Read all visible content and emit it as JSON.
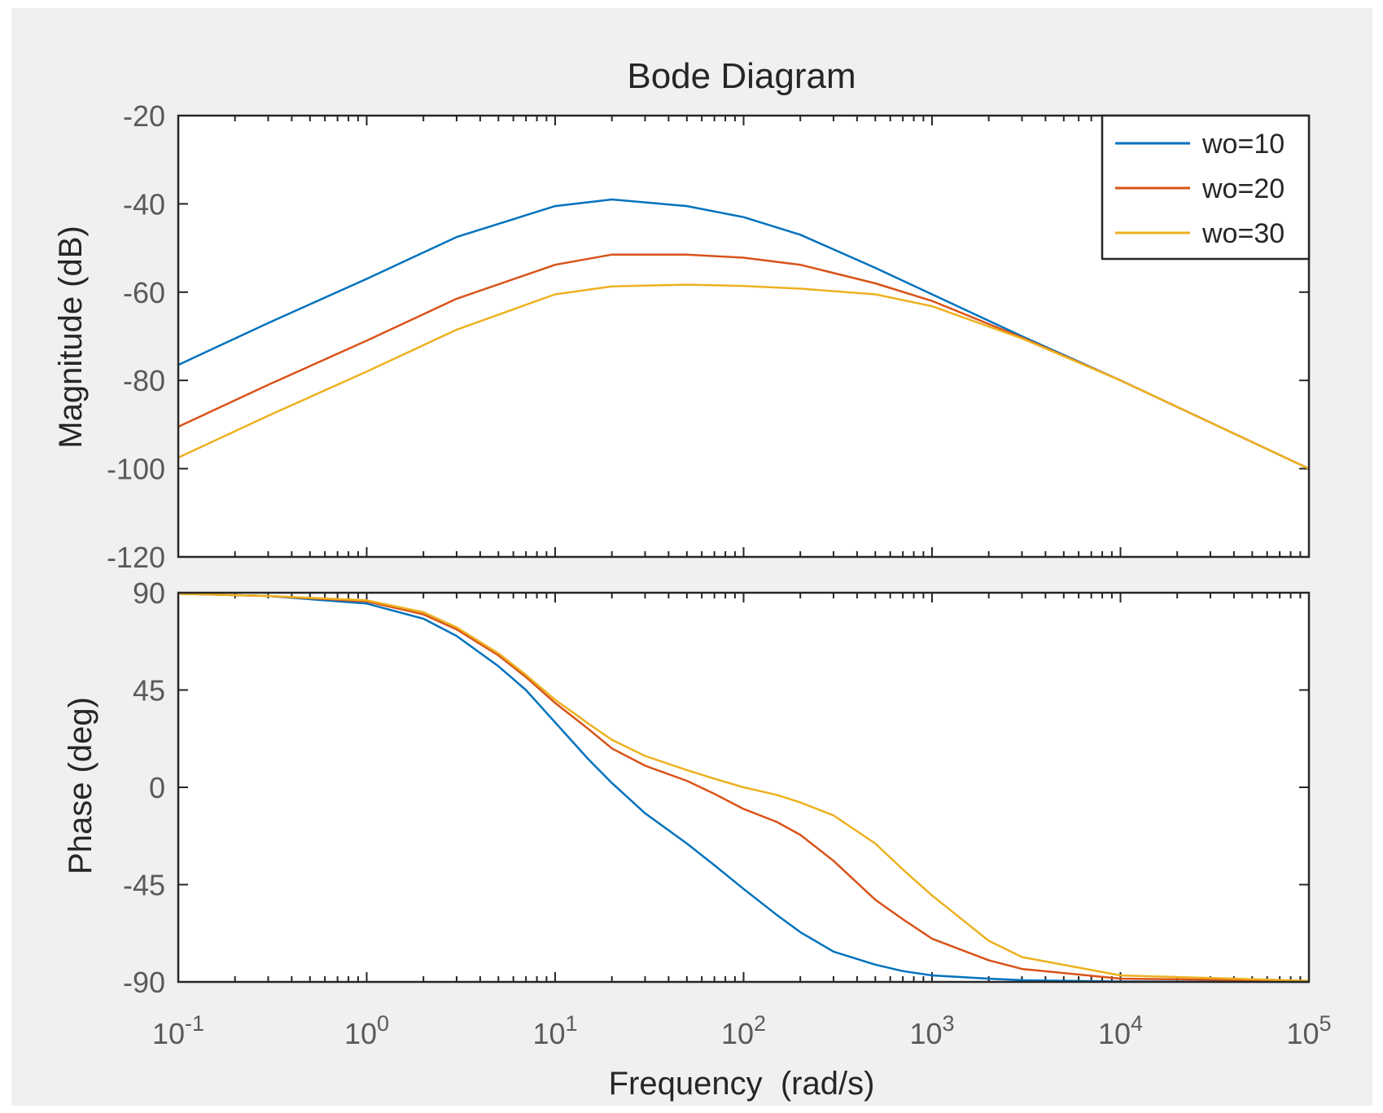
{
  "chart_data": {
    "type": "line",
    "title": "Bode Diagram",
    "xlabel": "Frequency  (rad/s)",
    "xscale": "log",
    "xlim": [
      0.1,
      100000
    ],
    "x_ticks": [
      {
        "base": "10",
        "exp": "-1",
        "value": 0.1
      },
      {
        "base": "10",
        "exp": "0",
        "value": 1
      },
      {
        "base": "10",
        "exp": "1",
        "value": 10
      },
      {
        "base": "10",
        "exp": "2",
        "value": 100
      },
      {
        "base": "10",
        "exp": "3",
        "value": 1000
      },
      {
        "base": "10",
        "exp": "4",
        "value": 10000
      },
      {
        "base": "10",
        "exp": "5",
        "value": 100000
      }
    ],
    "legend": {
      "location": "top-right",
      "entries": [
        "wo=10",
        "wo=20",
        "wo=30"
      ]
    },
    "series_colors": [
      "#0072bd",
      "#d95319",
      "#edb120"
    ],
    "magnitude": {
      "ylabel": "Magnitude (dB)",
      "ylim": [
        -120,
        -20
      ],
      "y_ticks": [
        "-20",
        "-40",
        "-60",
        "-80",
        "-100",
        "-120"
      ],
      "series": [
        {
          "name": "wo=10",
          "x": [
            0.1,
            0.3,
            1,
            3,
            10,
            20,
            50,
            100,
            200,
            500,
            1000,
            3000,
            10000,
            100000
          ],
          "values": [
            -76.5,
            -67,
            -57,
            -47.5,
            -40.5,
            -39,
            -40.5,
            -43,
            -47,
            -54.5,
            -60.5,
            -70,
            -80,
            -100
          ]
        },
        {
          "name": "wo=20",
          "x": [
            0.1,
            0.3,
            1,
            3,
            10,
            20,
            50,
            100,
            200,
            500,
            1000,
            3000,
            10000,
            100000
          ],
          "values": [
            -90.5,
            -81,
            -71,
            -61.5,
            -53.8,
            -51.5,
            -51.5,
            -52.2,
            -53.8,
            -58,
            -62,
            -70.3,
            -80,
            -100
          ]
        },
        {
          "name": "wo=30",
          "x": [
            0.1,
            0.3,
            1,
            3,
            10,
            20,
            50,
            100,
            200,
            500,
            1000,
            3000,
            10000,
            100000
          ],
          "values": [
            -97.5,
            -88,
            -78,
            -68.5,
            -60.5,
            -58.7,
            -58.3,
            -58.6,
            -59.2,
            -60.5,
            -63.2,
            -70.5,
            -80,
            -100
          ]
        }
      ]
    },
    "phase": {
      "ylabel": "Phase (deg)",
      "ylim": [
        -90,
        90
      ],
      "y_ticks": [
        "90",
        "45",
        "0",
        "-45",
        "-90"
      ],
      "series": [
        {
          "name": "wo=10",
          "x": [
            0.1,
            0.3,
            1,
            2,
            3,
            5,
            7,
            10,
            15,
            20,
            30,
            50,
            70,
            100,
            150,
            200,
            300,
            500,
            700,
            1000,
            2000,
            3000,
            10000,
            100000
          ],
          "values": [
            89.5,
            88.5,
            85,
            78,
            70,
            56,
            45,
            30,
            13,
            2,
            -12,
            -26,
            -36,
            -47,
            -59,
            -67,
            -76,
            -82,
            -85,
            -87,
            -88.5,
            -89.2,
            -89.8,
            -90
          ]
        },
        {
          "name": "wo=20",
          "x": [
            0.1,
            0.3,
            1,
            2,
            3,
            5,
            7,
            10,
            15,
            20,
            30,
            50,
            70,
            100,
            150,
            200,
            300,
            500,
            700,
            1000,
            2000,
            3000,
            10000,
            100000
          ],
          "values": [
            89.5,
            88.5,
            86,
            80,
            73,
            61,
            51,
            39,
            27,
            18,
            10,
            3,
            -3,
            -10,
            -16,
            -22,
            -34,
            -52,
            -61,
            -70,
            -80,
            -84,
            -88.5,
            -89.5
          ]
        },
        {
          "name": "wo=30",
          "x": [
            0.1,
            0.3,
            1,
            2,
            3,
            5,
            7,
            10,
            15,
            20,
            30,
            50,
            70,
            100,
            150,
            200,
            300,
            500,
            700,
            1000,
            2000,
            3000,
            10000,
            100000
          ],
          "values": [
            89.5,
            88.5,
            86.5,
            81,
            74,
            62,
            52,
            40.5,
            29.5,
            22,
            14.5,
            8,
            4,
            0,
            -3.5,
            -7,
            -13,
            -26,
            -38,
            -50,
            -71,
            -78.5,
            -87,
            -89.5
          ]
        }
      ]
    }
  }
}
